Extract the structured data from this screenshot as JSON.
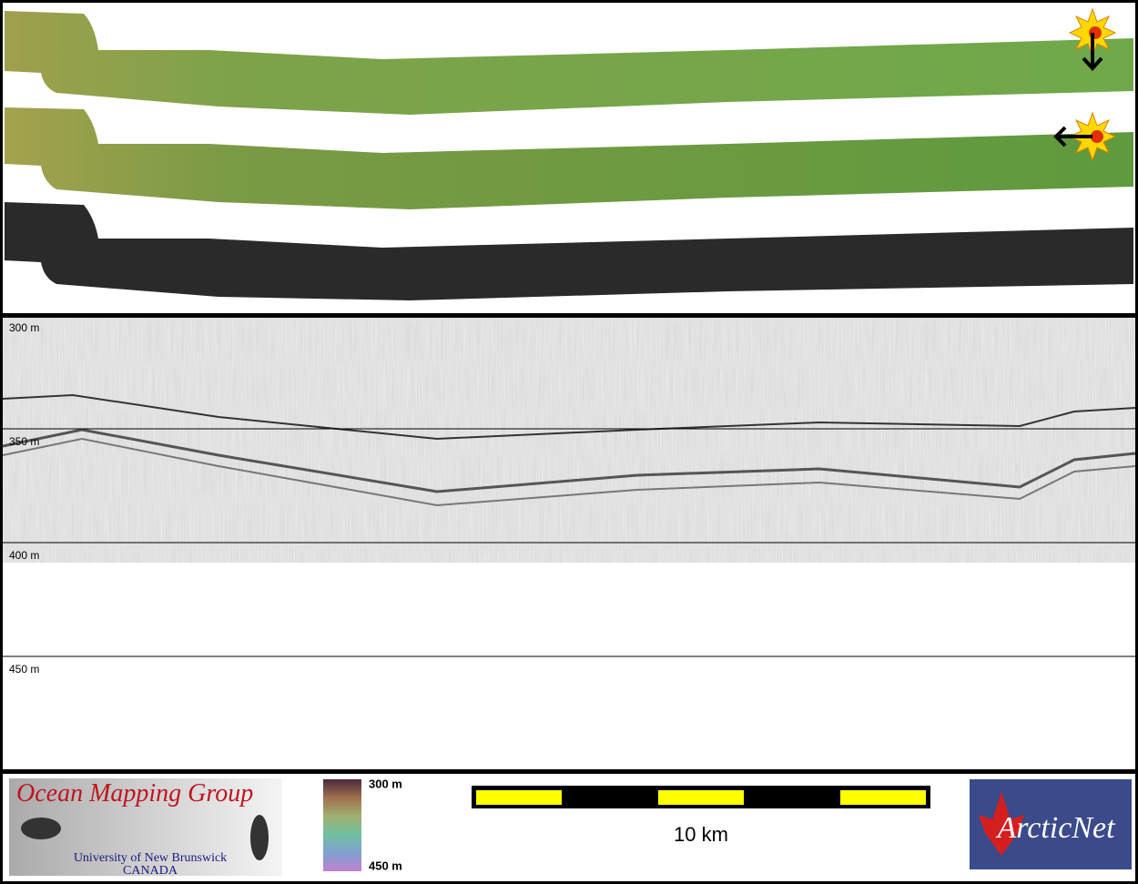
{
  "profile": {
    "depth_labels": [
      "300 m",
      "350 m",
      "400 m",
      "450 m"
    ]
  },
  "footer": {
    "logo_left": {
      "title": "Ocean Mapping Group",
      "line1": "University of New Brunswick",
      "line2": "CANADA"
    },
    "colorbar": {
      "top": "300 m",
      "bottom": "450 m"
    },
    "scale_bar": {
      "label": "10 km"
    },
    "logo_right": {
      "title": "ArcticNet"
    }
  }
}
